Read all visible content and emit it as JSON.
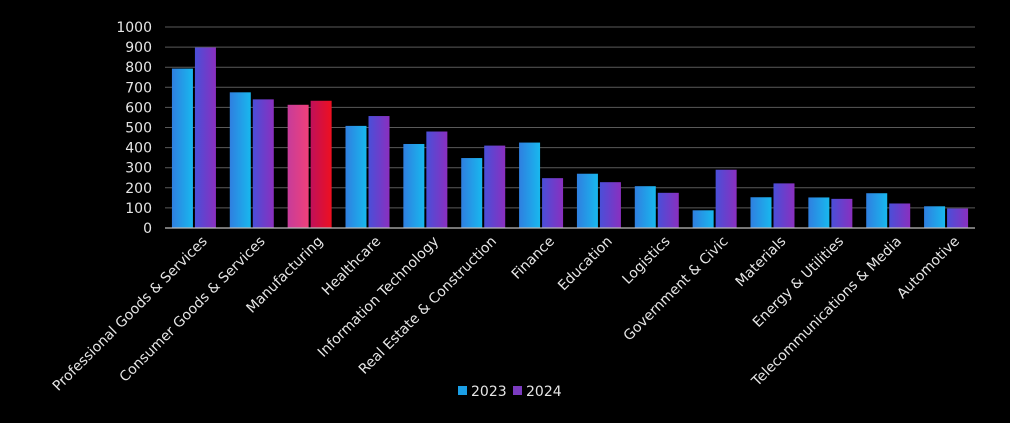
{
  "chart_data": {
    "type": "bar",
    "categories": [
      "Professional Goods & Services",
      "Consumer Goods & Services",
      "Manufacturing",
      "Healthcare",
      "Information Technology",
      "Real Estate & Construction",
      "Finance",
      "Education",
      "Logistics",
      "Government & Civic",
      "Materials",
      "Energy & Utilities",
      "Telecommunications & Media",
      "Automotive"
    ],
    "series": [
      {
        "name": "2023",
        "values": [
          793,
          675,
          613,
          508,
          418,
          348,
          425,
          270,
          208,
          88,
          153,
          152,
          173,
          108
        ]
      },
      {
        "name": "2024",
        "values": [
          898,
          640,
          633,
          557,
          480,
          410,
          248,
          228,
          175,
          290,
          222,
          145,
          122,
          97
        ]
      }
    ],
    "yticks": [
      "0",
      "100",
      "200",
      "300",
      "400",
      "500",
      "600",
      "700",
      "800",
      "900",
      "1000"
    ],
    "ylim": [
      0,
      1000
    ],
    "grid": true,
    "legend_position": "bottom",
    "highlight_category": "Manufacturing",
    "colors": {
      "series_2023": "#1b9fe6",
      "series_2024": "#7b3bc0",
      "highlight_2023": "#e8407a",
      "highlight_2024": "#e0102a",
      "background": "#000000",
      "text": "#e6e6e6",
      "grid": "#5a5a5a"
    }
  }
}
